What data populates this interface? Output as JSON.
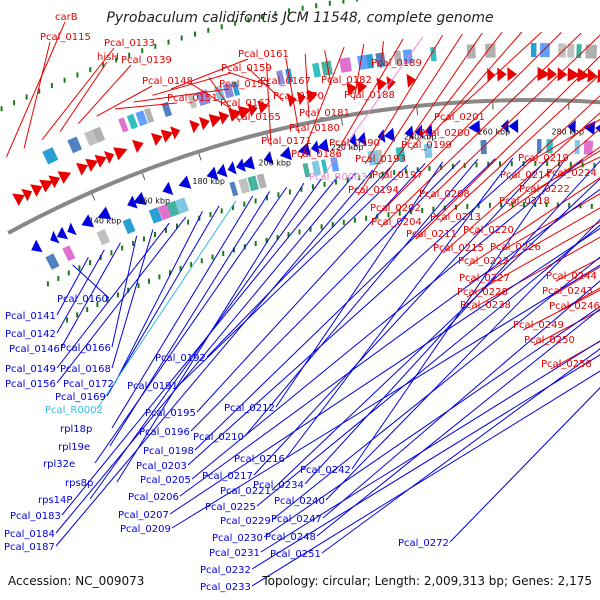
{
  "title": "Pyrobaculum calidifontis JCM 11548, complete genome",
  "accession": "Accession: NC_009073",
  "topology": "Topology: circular; Length: 2,009,313 bp; Genes: 2,175",
  "colors": {
    "forward": "#e80000",
    "reverse": "#0000e0",
    "rna_forward": "#ee88cc",
    "rna_reverse": "#33bbdd",
    "backbone": "#888888",
    "gc_dots": "#1a7a1a"
  },
  "tick_labels": [
    "140 kbp",
    "160 kbp",
    "180 kbp",
    "200 kbp",
    "220 kbp",
    "240 kbp",
    "260 kbp",
    "280 kbp"
  ],
  "forward_labels": [
    {
      "text": "carB",
      "color": "red"
    },
    {
      "text": "Pcal_0115",
      "color": "red"
    },
    {
      "text": "Pcal_0133",
      "color": "red"
    },
    {
      "text": "hisH",
      "color": "red"
    },
    {
      "text": "Pcal_0139",
      "color": "red"
    },
    {
      "text": "Pcal_0148",
      "color": "red"
    },
    {
      "text": "Pcal_0151",
      "color": "red"
    },
    {
      "text": "Pcal_0157",
      "color": "red"
    },
    {
      "text": "Pcal_0159",
      "color": "red"
    },
    {
      "text": "Pcal_0161",
      "color": "red"
    },
    {
      "text": "Pcal_0162",
      "color": "red"
    },
    {
      "text": "Pcal_0165",
      "color": "red"
    },
    {
      "text": "Pcal_0167",
      "color": "red"
    },
    {
      "text": "Pcal_0170",
      "color": "red"
    },
    {
      "text": "Pcal_0171",
      "color": "red"
    },
    {
      "text": "Pcal_0180",
      "color": "red"
    },
    {
      "text": "Pcal_0181",
      "color": "red"
    },
    {
      "text": "Pcal_0182",
      "color": "red"
    },
    {
      "text": "Pcal_0186",
      "color": "red"
    },
    {
      "text": "Pcal_0188",
      "color": "red"
    },
    {
      "text": "Pcal_0189",
      "color": "red"
    },
    {
      "text": "Pcal_0190",
      "color": "red"
    },
    {
      "text": "Pcal_R0003",
      "color": "pink"
    },
    {
      "text": "Pcal_0193",
      "color": "red"
    },
    {
      "text": "Pcal_0194",
      "color": "red"
    },
    {
      "text": "Pcal_0197",
      "color": "red"
    },
    {
      "text": "Pcal_0199",
      "color": "red"
    },
    {
      "text": "Pcal_0200",
      "color": "red"
    },
    {
      "text": "Pcal_0201",
      "color": "red"
    },
    {
      "text": "Pcal_0202",
      "color": "red"
    },
    {
      "text": "Pcal_0204",
      "color": "red"
    },
    {
      "text": "Pcal_0208",
      "color": "red"
    },
    {
      "text": "Pcal_0211",
      "color": "red"
    },
    {
      "text": "Pcal_0213",
      "color": "red"
    },
    {
      "text": "Pcal_0214",
      "color": "red"
    },
    {
      "text": "Pcal_0215",
      "color": "red"
    },
    {
      "text": "Pcal_0218",
      "color": "red"
    },
    {
      "text": "Pcal_0219",
      "color": "red"
    },
    {
      "text": "Pcal_0220",
      "color": "red"
    },
    {
      "text": "Pcal_0222",
      "color": "red"
    },
    {
      "text": "Pcal_0223",
      "color": "red"
    },
    {
      "text": "Pcal_0224",
      "color": "red"
    },
    {
      "text": "Pcal_0226",
      "color": "red"
    },
    {
      "text": "Pcal_0227",
      "color": "red"
    },
    {
      "text": "Pcal_0228",
      "color": "red"
    },
    {
      "text": "Pcal_0238",
      "color": "red"
    },
    {
      "text": "Pcal_0243",
      "color": "red"
    },
    {
      "text": "Pcal_0244",
      "color": "red"
    },
    {
      "text": "Pcal_0246",
      "color": "red"
    },
    {
      "text": "Pcal_0249",
      "color": "red"
    },
    {
      "text": "Pcal_0250",
      "color": "red"
    },
    {
      "text": "Pcal_0258",
      "color": "red"
    }
  ],
  "reverse_labels": [
    {
      "text": "Pcal_0160",
      "color": "blue"
    },
    {
      "text": "Pcal_0141",
      "color": "blue"
    },
    {
      "text": "Pcal_0142",
      "color": "blue"
    },
    {
      "text": "Pcal_0146",
      "color": "blue"
    },
    {
      "text": "Pcal_0166",
      "color": "blue"
    },
    {
      "text": "Pcal_0168",
      "color": "blue"
    },
    {
      "text": "Pcal_0149",
      "color": "blue"
    },
    {
      "text": "Pcal_0156",
      "color": "blue"
    },
    {
      "text": "Pcal_0172",
      "color": "blue"
    },
    {
      "text": "Pcal_0169",
      "color": "blue"
    },
    {
      "text": "Pcal_R0002",
      "color": "cyan"
    },
    {
      "text": "rpl18p",
      "color": "blue"
    },
    {
      "text": "rpl19e",
      "color": "blue"
    },
    {
      "text": "rpl32e",
      "color": "blue"
    },
    {
      "text": "rps8p",
      "color": "blue"
    },
    {
      "text": "rps14P",
      "color": "blue"
    },
    {
      "text": "Pcal_0183",
      "color": "blue"
    },
    {
      "text": "Pcal_0184",
      "color": "blue"
    },
    {
      "text": "Pcal_0187",
      "color": "blue"
    },
    {
      "text": "Pcal_0192",
      "color": "blue"
    },
    {
      "text": "Pcal_0191",
      "color": "blue"
    },
    {
      "text": "Pcal_0195",
      "color": "blue"
    },
    {
      "text": "Pcal_0212",
      "color": "blue"
    },
    {
      "text": "Pcal_0196",
      "color": "blue"
    },
    {
      "text": "Pcal_0210",
      "color": "blue"
    },
    {
      "text": "Pcal_0198",
      "color": "blue"
    },
    {
      "text": "Pcal_0216",
      "color": "blue"
    },
    {
      "text": "Pcal_0203",
      "color": "blue"
    },
    {
      "text": "Pcal_0217",
      "color": "blue"
    },
    {
      "text": "Pcal_0242",
      "color": "blue"
    },
    {
      "text": "Pcal_0205",
      "color": "blue"
    },
    {
      "text": "Pcal_0234",
      "color": "blue"
    },
    {
      "text": "Pcal_0221",
      "color": "blue"
    },
    {
      "text": "Pcal_0206",
      "color": "blue"
    },
    {
      "text": "Pcal_0240",
      "color": "blue"
    },
    {
      "text": "Pcal_0225",
      "color": "blue"
    },
    {
      "text": "Pcal_0207",
      "color": "blue"
    },
    {
      "text": "Pcal_0229",
      "color": "blue"
    },
    {
      "text": "Pcal_0247",
      "color": "blue"
    },
    {
      "text": "Pcal_0209",
      "color": "blue"
    },
    {
      "text": "Pcal_0248",
      "color": "blue"
    },
    {
      "text": "Pcal_0230",
      "color": "blue"
    },
    {
      "text": "Pcal_0272",
      "color": "blue"
    },
    {
      "text": "Pcal_0251",
      "color": "blue"
    },
    {
      "text": "Pcal_0231",
      "color": "blue"
    },
    {
      "text": "Pcal_0232",
      "color": "blue"
    },
    {
      "text": "Pcal_0233",
      "color": "blue"
    }
  ]
}
